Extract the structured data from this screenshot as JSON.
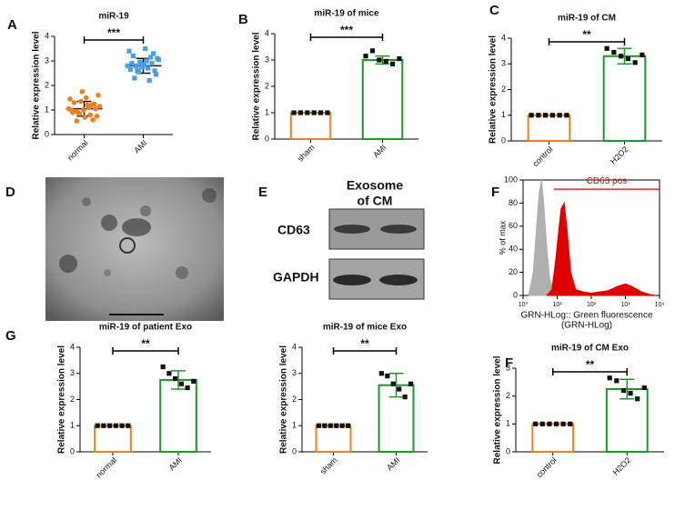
{
  "panels": [
    "A",
    "B",
    "C",
    "D",
    "E",
    "F",
    "G",
    "F"
  ],
  "blot": {
    "header": [
      "Exosome",
      "of CM"
    ],
    "rows": [
      "CD63",
      "GAPDH"
    ]
  },
  "chart_data": [
    {
      "type": "scatter",
      "title": "miR-19",
      "ylabel": "Relative expression level",
      "categories": [
        "normal",
        "AMI"
      ],
      "colors": [
        "#f07f21",
        "#4a9ee8"
      ],
      "values": [
        1.05,
        2.8
      ],
      "errors": [
        0.3,
        0.3
      ],
      "points": [
        [
          1.05,
          0.9,
          1.2,
          0.75,
          1.3,
          1.0,
          0.6,
          1.45,
          0.85,
          1.1,
          1.6,
          0.95,
          0.7,
          1.25,
          1.0,
          1.35,
          0.8,
          1.15,
          0.55,
          1.5,
          1.05,
          0.9,
          1.75,
          1.2
        ],
        [
          2.8,
          2.6,
          3.0,
          2.45,
          3.2,
          2.75,
          2.9,
          3.4,
          2.55,
          2.7,
          3.1,
          2.3,
          2.85,
          3.3,
          2.65,
          2.95,
          2.2,
          3.05,
          2.8,
          3.5,
          2.6,
          2.9,
          2.75,
          3.15
        ]
      ],
      "significance": "***",
      "ylim": [
        0,
        4
      ],
      "yticks": [
        0,
        1,
        2,
        3,
        4
      ]
    },
    {
      "type": "bar",
      "title": "miR-19 of mice",
      "ylabel": "Relative expression level",
      "categories": [
        "sham",
        "AMI"
      ],
      "colors": [
        "#f07f21",
        "#1a9a2a"
      ],
      "values": [
        1,
        3.0
      ],
      "errors": [
        0,
        0.15
      ],
      "points": [
        [
          1,
          1,
          1,
          1,
          1,
          1
        ],
        [
          3.15,
          3.35,
          3.0,
          2.95,
          2.85,
          3.05
        ]
      ],
      "significance": "***",
      "ylim": [
        0,
        4
      ],
      "yticks": [
        0,
        1,
        2,
        3,
        4
      ]
    },
    {
      "type": "bar",
      "title": "miR-19 of CM",
      "ylabel": "Relative expression level",
      "categories": [
        "control",
        "H2O2"
      ],
      "colors": [
        "#f07f21",
        "#1a9a2a"
      ],
      "values": [
        1,
        3.3
      ],
      "errors": [
        0,
        0.3
      ],
      "points": [
        [
          1,
          1,
          1,
          1,
          1,
          1
        ],
        [
          3.6,
          3.45,
          3.3,
          3.2,
          3.05,
          3.35
        ]
      ],
      "significance": "**",
      "ylim": [
        0,
        4
      ],
      "yticks": [
        0,
        1,
        2,
        3,
        4
      ]
    },
    {
      "type": "area",
      "ylabel": "% of max",
      "xlabel": [
        "GRN-HLog:: Green fluorescence",
        "(GRN-HLog)"
      ],
      "xlog": true,
      "annotation": {
        "label": "CD63 pos",
        "x": [
          8,
          10000
        ],
        "y": 92
      },
      "series": [
        {
          "color": "#b0b0b0",
          "x": [
            1.5,
            2,
            2.5,
            3,
            3.5,
            4,
            5,
            6,
            8,
            10
          ],
          "values": [
            2,
            20,
            60,
            90,
            100,
            80,
            40,
            15,
            3,
            0
          ]
        },
        {
          "color": "#e00000",
          "x": [
            5,
            7,
            9,
            11,
            13,
            16,
            19,
            25,
            35,
            60,
            100,
            300,
            600,
            1000,
            1500,
            3000,
            5000,
            8000
          ],
          "values": [
            0,
            5,
            30,
            55,
            75,
            80,
            60,
            20,
            5,
            3,
            2,
            4,
            8,
            10,
            8,
            3,
            1,
            0
          ]
        }
      ],
      "xlim": [
        1,
        10000
      ],
      "xticks": [
        {
          "value": 1,
          "label": "10⁰"
        },
        {
          "value": 10,
          "label": "10¹"
        },
        {
          "value": 100,
          "label": "10²"
        },
        {
          "value": 1000,
          "label": "10³"
        },
        {
          "value": 10000,
          "label": "10⁴"
        }
      ],
      "ylim": [
        0,
        100
      ],
      "yticks": [
        0,
        20,
        40,
        60,
        80,
        100
      ]
    },
    {
      "type": "bar",
      "title": "miR-19 of patient Exo",
      "ylabel": "Relative expression level",
      "categories": [
        "normal",
        "AMI"
      ],
      "colors": [
        "#f07f21",
        "#1a9a2a"
      ],
      "values": [
        1,
        2.75
      ],
      "errors": [
        0,
        0.35
      ],
      "points": [
        [
          1,
          1,
          1,
          1,
          1,
          1
        ],
        [
          3.25,
          3.0,
          2.8,
          2.6,
          2.45,
          2.7
        ]
      ],
      "significance": "**",
      "ylim": [
        0,
        4
      ],
      "yticks": [
        0,
        1,
        2,
        3,
        4
      ]
    },
    {
      "type": "bar",
      "title": "miR-19 of mice Exo",
      "ylabel": "Relative expression level",
      "categories": [
        "sham",
        "AMI"
      ],
      "colors": [
        "#f07f21",
        "#1a9a2a"
      ],
      "values": [
        1,
        2.55
      ],
      "errors": [
        0,
        0.45
      ],
      "points": [
        [
          1,
          1,
          1,
          1,
          1,
          1
        ],
        [
          3.0,
          2.9,
          2.6,
          2.4,
          2.1,
          2.6
        ]
      ],
      "significance": "**",
      "ylim": [
        0,
        4
      ],
      "yticks": [
        0,
        1,
        2,
        3,
        4
      ]
    },
    {
      "type": "bar",
      "title": "miR-19 of CM Exo",
      "ylabel": "Relative expression level",
      "categories": [
        "control",
        "H2O2"
      ],
      "colors": [
        "#f07f21",
        "#1a9a2a"
      ],
      "values": [
        1,
        2.25
      ],
      "errors": [
        0,
        0.35
      ],
      "points": [
        [
          1,
          1,
          1,
          1,
          1,
          1
        ],
        [
          2.65,
          2.55,
          2.2,
          2.1,
          1.9,
          2.3
        ]
      ],
      "significance": "**",
      "ylim": [
        0,
        3
      ],
      "yticks": [
        0,
        1,
        2,
        3
      ]
    }
  ]
}
